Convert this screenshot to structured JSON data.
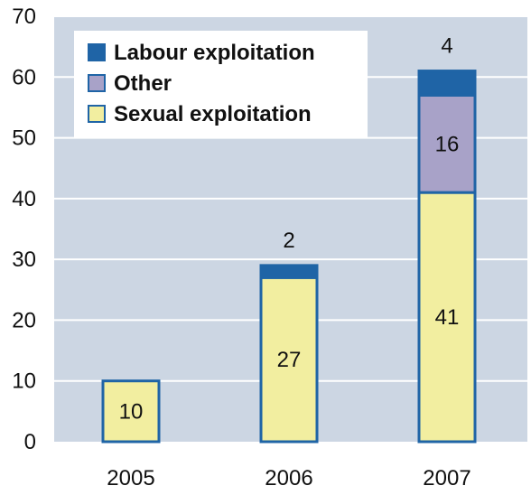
{
  "chart_data": {
    "type": "bar",
    "stacked": true,
    "categories": [
      "2005",
      "2006",
      "2007"
    ],
    "series": [
      {
        "name": "Sexual exploitation",
        "values": [
          10,
          27,
          41
        ],
        "color": "#f2eea0"
      },
      {
        "name": "Other",
        "values": [
          0,
          0,
          16
        ],
        "color": "#a8a2c8"
      },
      {
        "name": "Labour exploitation",
        "values": [
          0,
          2,
          4
        ],
        "color": "#1f64a6"
      }
    ],
    "data_labels": [
      [
        "10",
        "27",
        "41"
      ],
      [
        "",
        "",
        "16"
      ],
      [
        "",
        "2",
        "4"
      ]
    ],
    "legend_order": [
      "Labour exploitation",
      "Other",
      "Sexual exploitation"
    ],
    "legend_position": "top-left",
    "yticks": [
      "0",
      "10",
      "20",
      "30",
      "40",
      "50",
      "60",
      "70"
    ],
    "ylim": [
      0,
      70
    ],
    "grid": true,
    "plot_background": "#ccd6e3",
    "grid_color": "#ffffff",
    "bar_outline_color": "#1f64a6"
  }
}
